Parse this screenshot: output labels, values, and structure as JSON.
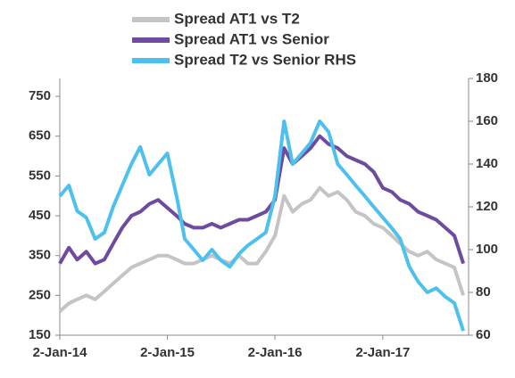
{
  "chart_data": {
    "type": "line",
    "x": [
      "2014-01-02",
      "2014-02-02",
      "2014-03-02",
      "2014-04-02",
      "2014-05-02",
      "2014-06-02",
      "2014-07-02",
      "2014-08-02",
      "2014-09-02",
      "2014-10-02",
      "2014-11-02",
      "2014-12-02",
      "2015-01-02",
      "2015-02-02",
      "2015-03-02",
      "2015-04-02",
      "2015-05-02",
      "2015-06-02",
      "2015-07-02",
      "2015-08-02",
      "2015-09-02",
      "2015-10-02",
      "2015-11-02",
      "2015-12-02",
      "2016-01-02",
      "2016-02-02",
      "2016-03-02",
      "2016-04-02",
      "2016-05-02",
      "2016-06-02",
      "2016-07-02",
      "2016-08-02",
      "2016-09-02",
      "2016-10-02",
      "2016-11-02",
      "2016-12-02",
      "2017-01-02",
      "2017-02-02",
      "2017-03-02",
      "2017-04-02",
      "2017-05-02",
      "2017-06-02",
      "2017-07-02",
      "2017-08-02",
      "2017-09-02",
      "2017-10-02"
    ],
    "series": [
      {
        "name": "Spread AT1 vs T2",
        "color": "#c4c4c4",
        "values": [
          210,
          230,
          240,
          250,
          240,
          260,
          280,
          300,
          320,
          330,
          340,
          350,
          350,
          340,
          330,
          330,
          340,
          350,
          340,
          330,
          350,
          330,
          330,
          360,
          400,
          500,
          460,
          480,
          490,
          520,
          500,
          510,
          490,
          460,
          450,
          430,
          420,
          400,
          380,
          360,
          350,
          360,
          340,
          330,
          320,
          250
        ]
      },
      {
        "name": "Spread AT1 vs Senior",
        "color": "#6e4b9e",
        "values": [
          330,
          370,
          340,
          360,
          330,
          340,
          380,
          420,
          450,
          460,
          480,
          490,
          470,
          450,
          430,
          420,
          420,
          430,
          420,
          430,
          440,
          440,
          450,
          460,
          490,
          620,
          580,
          600,
          620,
          650,
          630,
          620,
          600,
          590,
          580,
          560,
          520,
          510,
          490,
          480,
          460,
          450,
          440,
          420,
          400,
          330
        ]
      },
      {
        "name": "Spread T2 vs Senior RHS",
        "color": "#4ec0ee",
        "axis": "y2",
        "values": [
          125,
          130,
          118,
          115,
          105,
          108,
          120,
          130,
          140,
          148,
          135,
          140,
          145,
          125,
          105,
          100,
          95,
          100,
          95,
          92,
          98,
          102,
          105,
          108,
          125,
          160,
          140,
          145,
          150,
          160,
          155,
          140,
          135,
          130,
          125,
          120,
          115,
          110,
          105,
          92,
          85,
          80,
          82,
          78,
          75,
          62
        ]
      }
    ],
    "xlim": [
      "2014-01-02",
      "2017-10-20"
    ],
    "xticks": [
      {
        "value": "2014-01-02",
        "label": "2-Jan-14"
      },
      {
        "value": "2015-01-02",
        "label": "2-Jan-15"
      },
      {
        "value": "2016-01-02",
        "label": "2-Jan-16"
      },
      {
        "value": "2017-01-02",
        "label": "2-Jan-17"
      }
    ],
    "ylim": [
      150,
      795
    ],
    "yticks": [
      150,
      250,
      350,
      450,
      550,
      650,
      750
    ],
    "y2lim": [
      60,
      180
    ],
    "y2ticks": [
      60,
      80,
      100,
      120,
      140,
      160,
      180
    ],
    "legend": "top"
  }
}
